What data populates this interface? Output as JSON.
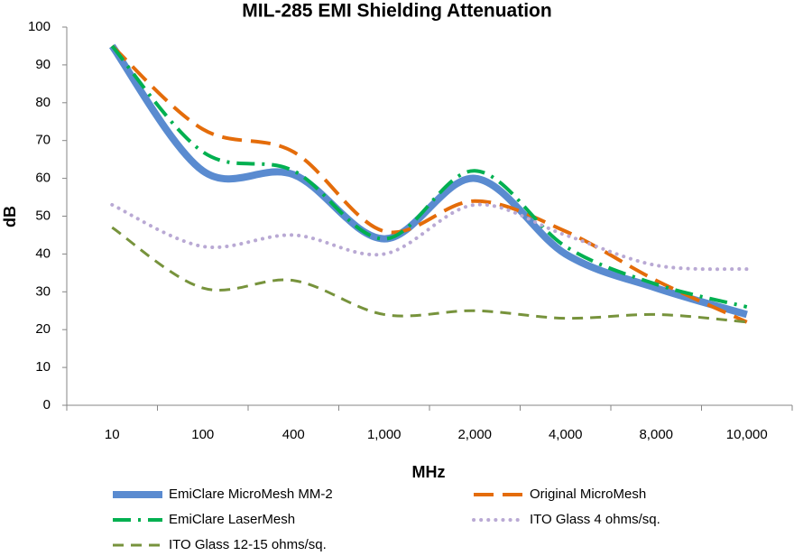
{
  "chart_data": {
    "type": "line",
    "title": "MIL-285 EMI Shielding Attenuation",
    "x_label": "MHz",
    "y_label": "dB",
    "categories": [
      "10",
      "100",
      "400",
      "1,000",
      "2,000",
      "4,000",
      "8,000",
      "10,000"
    ],
    "series": [
      {
        "name": "EmiClare MicroMesh MM-2",
        "color": "#5a8bd0",
        "values": [
          95,
          62,
          61,
          44,
          60,
          40,
          31,
          24
        ]
      },
      {
        "name": "Original MicroMesh",
        "color": "#e46c0a",
        "values": [
          95,
          73,
          67,
          46,
          54,
          46,
          33,
          22
        ]
      },
      {
        "name": "EmiClare LaserMesh",
        "color": "#00b050",
        "values": [
          95,
          67,
          62,
          44,
          62,
          42,
          32,
          26
        ]
      },
      {
        "name": "ITO Glass 4 ohms/sq.",
        "color": "#b9a9d4",
        "values": [
          53,
          42,
          45,
          40,
          53,
          45,
          37,
          36
        ]
      },
      {
        "name": "ITO Glass 12-15 ohms/sq.",
        "color": "#77933c",
        "values": [
          47,
          31,
          33,
          24,
          25,
          23,
          24,
          22
        ]
      }
    ],
    "ylim": [
      0,
      100
    ],
    "yticks": [
      0,
      10,
      20,
      30,
      40,
      50,
      60,
      70,
      80,
      90,
      100
    ],
    "grid": false
  }
}
